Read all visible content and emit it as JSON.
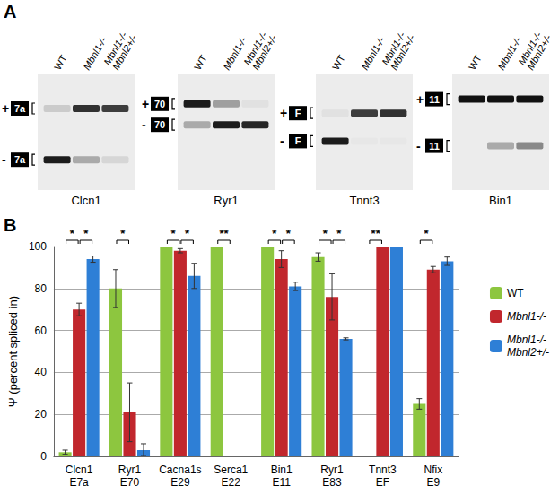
{
  "panel_labels": [
    "A",
    "B"
  ],
  "panel_a": {
    "lanes": [
      "WT",
      "Mbnl1-/-",
      "Mbnl1-/-\nMbnl2+/-"
    ],
    "gels": [
      {
        "gene": "Clcn1",
        "exon": "7a",
        "plus_label": "+",
        "minus_label": "-",
        "plus_intensity": [
          0.15,
          0.85,
          0.8
        ],
        "minus_intensity": [
          0.95,
          0.3,
          0.1
        ]
      },
      {
        "gene": "Ryr1",
        "exon": "70",
        "plus_label": "+",
        "minus_label": "-",
        "plus_intensity": [
          0.95,
          0.35,
          0.05
        ],
        "minus_intensity": [
          0.3,
          0.95,
          0.9
        ]
      },
      {
        "gene": "Tnnt3",
        "exon": "F",
        "plus_label": "+",
        "minus_label": "-",
        "plus_intensity": [
          0.05,
          0.8,
          0.85
        ],
        "minus_intensity": [
          0.95,
          0.02,
          0.02
        ]
      },
      {
        "gene": "Bin1",
        "exon": "11",
        "plus_label": "+",
        "minus_label": "-",
        "plus_intensity": [
          1,
          1,
          1
        ],
        "minus_intensity": [
          0,
          0.3,
          0.45
        ]
      }
    ]
  },
  "chart_data": {
    "type": "bar",
    "ylabel": "Ψ (percent spliced in)",
    "categories": [
      "Clcn1\nE7a",
      "Ryr1\nE70",
      "Cacna1s\nE29",
      "Serca1\nE22",
      "Bin1\nE11",
      "Ryr1\nE83",
      "Tnnt3\nEF",
      "Nfix\nE9"
    ],
    "series": [
      {
        "name": "WT",
        "color": "#8dc63f",
        "values": [
          2,
          80,
          100,
          100,
          100,
          95,
          0,
          25
        ],
        "errors": [
          1,
          9,
          0,
          0,
          0,
          2,
          0,
          2.5
        ]
      },
      {
        "name": "Mbnl1-/-",
        "color": "#c1272d",
        "values": [
          70,
          21,
          98,
          0,
          94,
          76,
          100,
          89
        ],
        "errors": [
          3,
          14,
          1,
          0,
          4,
          11,
          0,
          1.5
        ]
      },
      {
        "name": "Mbnl1-/-\nMbnl2+/-",
        "color": "#2e7fd6",
        "values": [
          94,
          3,
          86,
          0,
          81,
          56,
          100,
          93
        ],
        "errors": [
          1.5,
          3,
          6,
          0,
          2,
          0.5,
          0,
          2
        ]
      }
    ],
    "ylim": [
      0,
      100
    ],
    "yticks": [
      0,
      20,
      40,
      60,
      80,
      100
    ],
    "grid": true,
    "legend": "right",
    "significance": [
      {
        "category": "Clcn1\nE7a",
        "pair": [
          "WT",
          "Mbnl1-/-"
        ],
        "label": "*"
      },
      {
        "category": "Clcn1\nE7a",
        "pair": [
          "Mbnl1-/-",
          "Mbnl1-/-\nMbnl2+/-"
        ],
        "label": "*"
      },
      {
        "category": "Ryr1\nE70",
        "pair": [
          "WT",
          "Mbnl1-/-"
        ],
        "label": "*"
      },
      {
        "category": "Cacna1s\nE29",
        "pair": [
          "WT",
          "Mbnl1-/-"
        ],
        "label": "*"
      },
      {
        "category": "Cacna1s\nE29",
        "pair": [
          "Mbnl1-/-",
          "Mbnl1-/-\nMbnl2+/-"
        ],
        "label": "*"
      },
      {
        "category": "Serca1\nE22",
        "pair": [
          "WT",
          "Mbnl1-/-"
        ],
        "label": "**"
      },
      {
        "category": "Bin1\nE11",
        "pair": [
          "WT",
          "Mbnl1-/-"
        ],
        "label": "*"
      },
      {
        "category": "Bin1\nE11",
        "pair": [
          "Mbnl1-/-",
          "Mbnl1-/-\nMbnl2+/-"
        ],
        "label": "*"
      },
      {
        "category": "Ryr1\nE83",
        "pair": [
          "WT",
          "Mbnl1-/-"
        ],
        "label": "*"
      },
      {
        "category": "Ryr1\nE83",
        "pair": [
          "Mbnl1-/-",
          "Mbnl1-/-\nMbnl2+/-"
        ],
        "label": "*"
      },
      {
        "category": "Tnnt3\nEF",
        "pair": [
          "WT",
          "Mbnl1-/-"
        ],
        "label": "**"
      },
      {
        "category": "Nfix\nE9",
        "pair": [
          "WT",
          "Mbnl1-/-"
        ],
        "label": "*"
      }
    ]
  }
}
